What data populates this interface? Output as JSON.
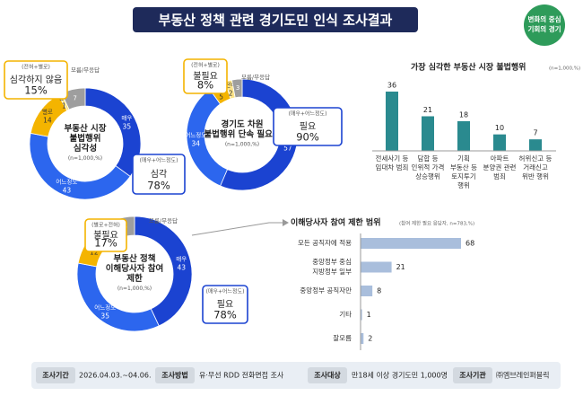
{
  "header": {
    "title": "부동산 정책 관련 경기도민 인식 조사결과",
    "logo": [
      "변화의 중심",
      "기회의 경기"
    ]
  },
  "chart_data": [
    {
      "type": "donut",
      "title": "부동산 시장\n불법행위\n심각성",
      "subtitle": "(n=1,000,%)",
      "categories": [
        "매우",
        "어느정도",
        "별로",
        "전혀",
        "모름/무응답"
      ],
      "values": [
        35,
        43,
        14,
        1,
        7
      ],
      "colors": [
        "#1b43d1",
        "#2c66ee",
        "#f4b400",
        "#fde488",
        "#9e9e9e"
      ],
      "callouts": [
        {
          "note": "(전혀+별로)",
          "name": "심각하지 않음",
          "value": "15%"
        },
        {
          "note": "(매우+어느정도)",
          "name": "심각",
          "value": "78%"
        }
      ]
    },
    {
      "type": "donut",
      "title": "경기도 차원\n불법행위 단속 필요성",
      "subtitle": "(n=1,000,%)",
      "categories": [
        "매우",
        "어느정도",
        "별로",
        "전혀",
        "모름/무응답"
      ],
      "values": [
        57,
        34,
        5,
        2,
        3
      ],
      "colors": [
        "#1b43d1",
        "#2c66ee",
        "#f4b400",
        "#fde488",
        "#9e9e9e"
      ],
      "callouts": [
        {
          "note": "(전혀+별로)",
          "name": "불필요",
          "value": "8%"
        },
        {
          "note": "(매우+어느정도)",
          "name": "필요",
          "value": "90%"
        }
      ]
    },
    {
      "type": "donut",
      "title": "부동산 정책\n이해당사자 참여\n제한",
      "subtitle": "(n=1,000,%)",
      "categories": [
        "매우",
        "어느정도",
        "별로",
        "전혀",
        "모름/무응답"
      ],
      "values": [
        43,
        35,
        12,
        4,
        6
      ],
      "colors": [
        "#1b43d1",
        "#2c66ee",
        "#f4b400",
        "#fde488",
        "#9e9e9e"
      ],
      "callouts": [
        {
          "note": "(별로+전혀)",
          "name": "불필요",
          "value": "17%"
        },
        {
          "note": "(매우+어느정도)",
          "name": "필요",
          "value": "78%"
        }
      ]
    },
    {
      "type": "bar",
      "title": "가장 심각한 부동산 시장 불법행위",
      "subtitle": "(n=1,000,%)",
      "categories": [
        "전세사기 등\n임대차 범죄",
        "담합 등\n인위적 가격\n상승행위",
        "기획\n부동산 등\n토지투기\n행위",
        "아파트\n분양권 관련\n범죄",
        "허위신고 등\n거래신고\n위반 행위"
      ],
      "values": [
        36,
        21,
        18,
        10,
        7
      ],
      "color": "#2a8a8f"
    },
    {
      "type": "hbar",
      "title": "이해당사자 참여 제한 범위",
      "subtitle": "(참여 제한 필요 응답자, n=783,%)",
      "categories": [
        "모든 공직자에 적용",
        "중앙정부 중심\n지방정부 일부",
        "중앙정부 공직자만",
        "기타",
        "잘모름"
      ],
      "values": [
        68,
        21,
        8,
        1,
        2
      ],
      "color": "#a9bedc"
    }
  ],
  "footer": [
    {
      "label": "조사기간",
      "value": "2026.04.03.~04.06."
    },
    {
      "label": "조사방법",
      "value": "유·무선 RDD 전화면접 조사"
    },
    {
      "label": "조사대상",
      "value": "만18세 이상 경기도민 1,000명"
    },
    {
      "label": "조사기관",
      "value": "㈜엠브레인퍼블릭"
    }
  ]
}
